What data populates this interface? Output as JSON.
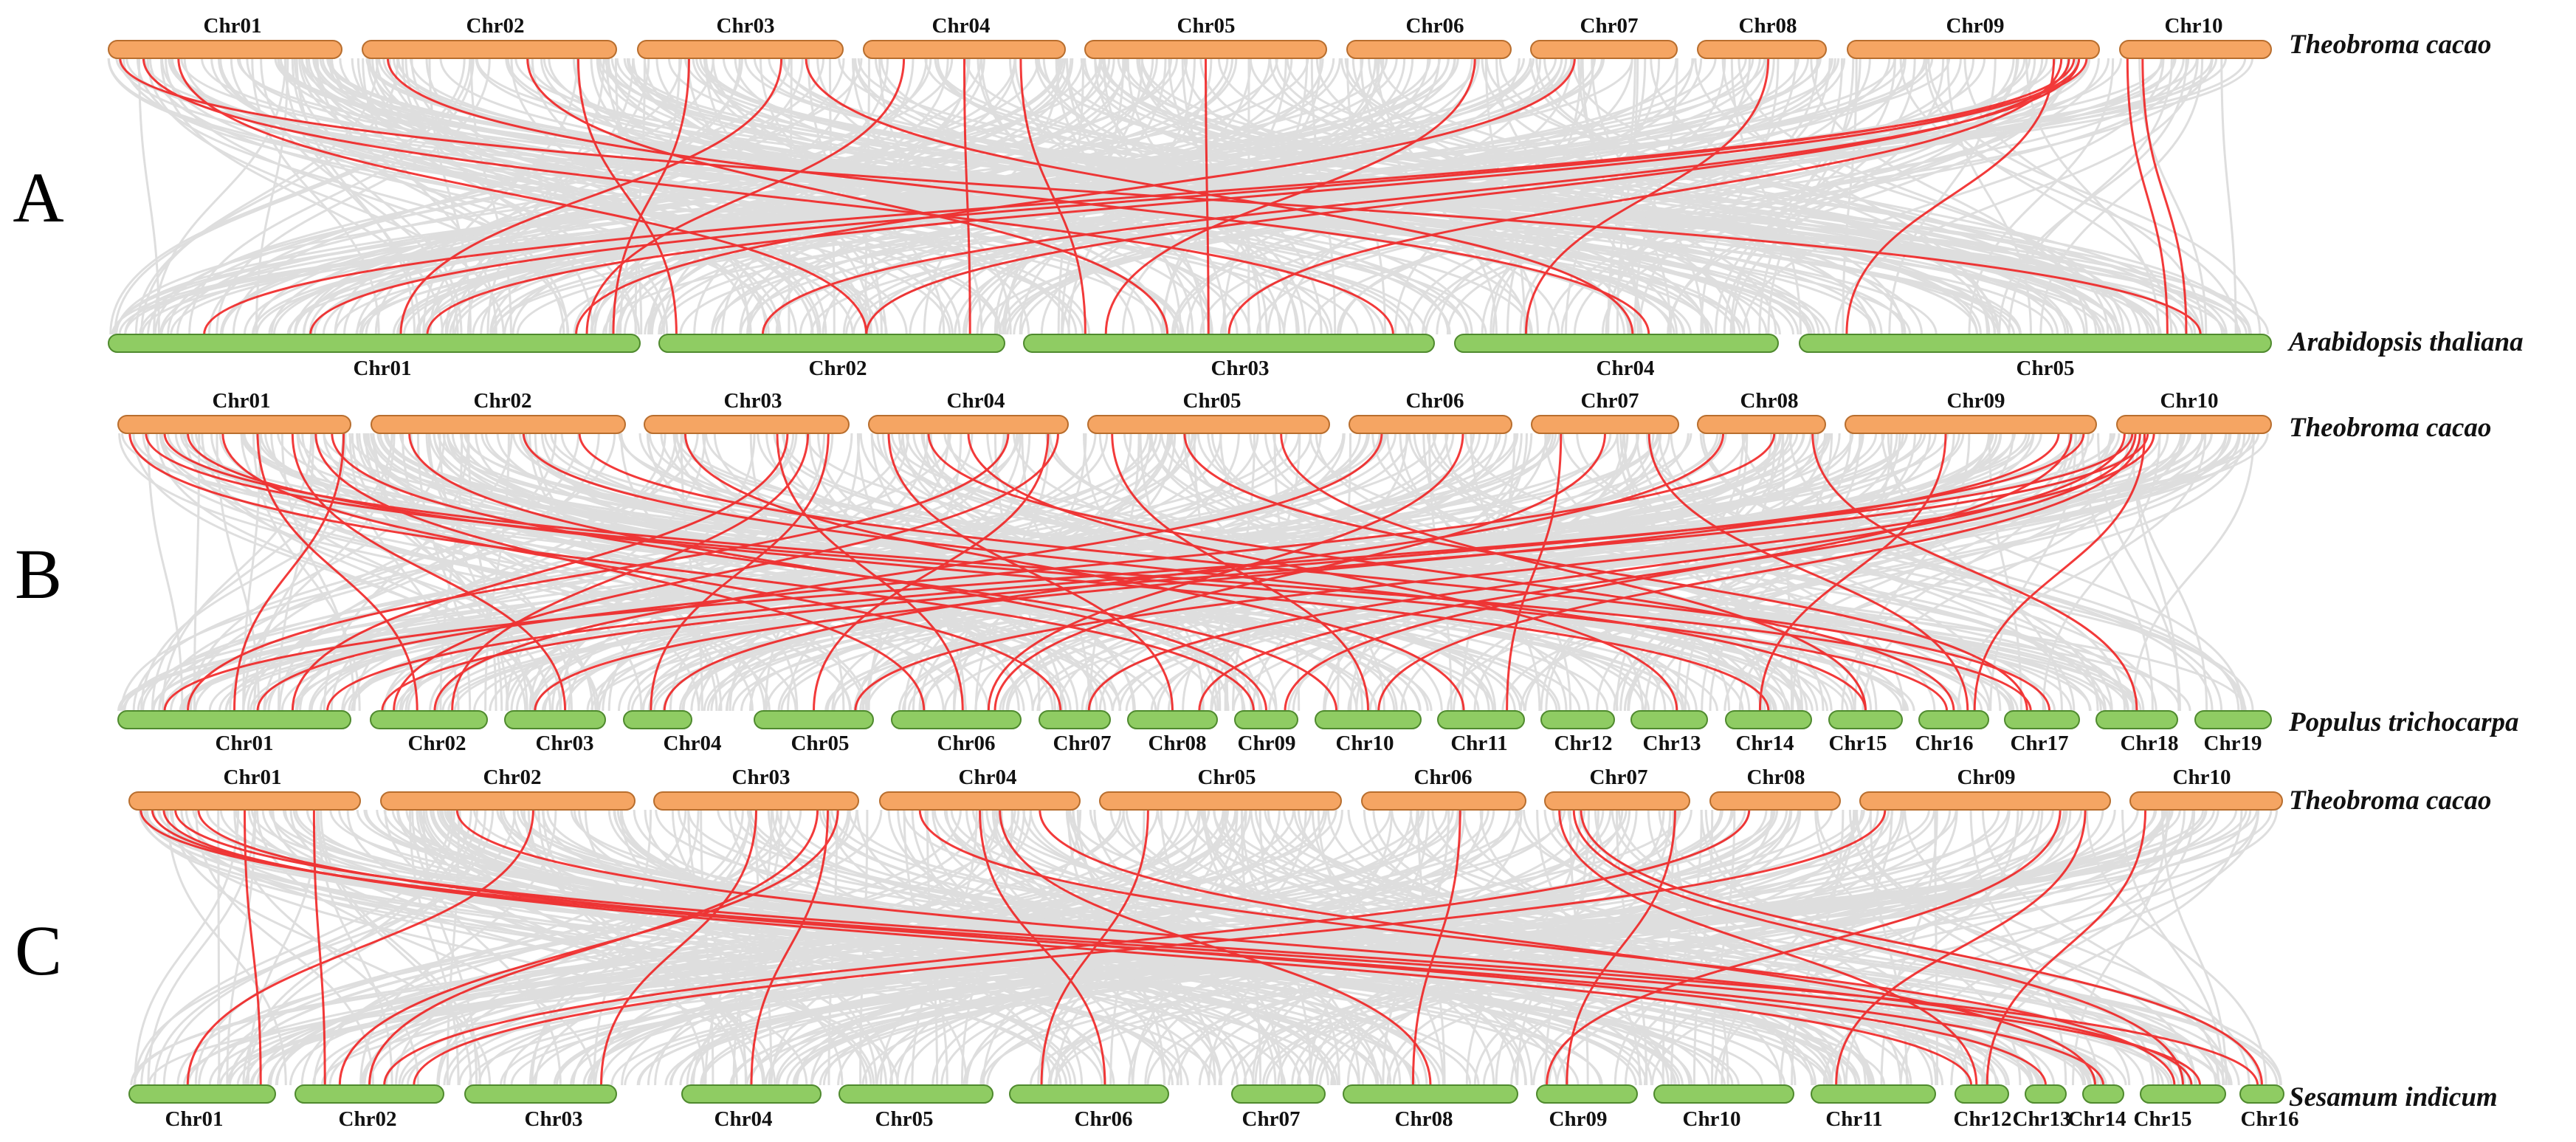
{
  "colors": {
    "reference_bar": "#F5A563",
    "reference_bar_stroke": "#B86E2E",
    "target_bar": "#8FCC63",
    "target_bar_stroke": "#4F8A2E",
    "background_link": "#D3D3D3",
    "highlight_link": "#F01818"
  },
  "panels": [
    {
      "letter": "A",
      "top_species": "Theobroma cacao",
      "bottom_species": "Arabidopsis thaliana",
      "top_chromosomes": [
        "Chr01",
        "Chr02",
        "Chr03",
        "Chr04",
        "Chr05",
        "Chr06",
        "Chr07",
        "Chr08",
        "Chr09",
        "Chr10"
      ],
      "bottom_chromosomes": [
        "Chr01",
        "Chr02",
        "Chr03",
        "Chr04",
        "Chr05"
      ],
      "highlight_links": [
        [
          0,
          0.05,
          4,
          0.85
        ],
        [
          0,
          0.15,
          2,
          0.9
        ],
        [
          0,
          0.3,
          1,
          0.6
        ],
        [
          1,
          0.1,
          3,
          0.6
        ],
        [
          1,
          0.65,
          2,
          0.35
        ],
        [
          1,
          0.85,
          1,
          0.05
        ],
        [
          2,
          0.25,
          0,
          0.95
        ],
        [
          2,
          0.7,
          0,
          0.55
        ],
        [
          2,
          0.82,
          3,
          0.55
        ],
        [
          3,
          0.5,
          1,
          0.9
        ],
        [
          3,
          0.78,
          2,
          0.15
        ],
        [
          3,
          0.2,
          0,
          0.9
        ],
        [
          4,
          0.5,
          2,
          0.45
        ],
        [
          5,
          0.78,
          2,
          0.2
        ],
        [
          6,
          0.3,
          0,
          0.88
        ],
        [
          7,
          0.55,
          3,
          0.22
        ],
        [
          8,
          0.95,
          0,
          0.18
        ],
        [
          8,
          0.9,
          0,
          0.38
        ],
        [
          8,
          0.88,
          1,
          0.6
        ],
        [
          8,
          0.85,
          2,
          0.5
        ],
        [
          8,
          0.82,
          4,
          0.1
        ],
        [
          8,
          0.92,
          0,
          0.6
        ],
        [
          8,
          0.92,
          1,
          0.3
        ],
        [
          9,
          0.05,
          4,
          0.78
        ],
        [
          9,
          0.15,
          4,
          0.82
        ]
      ]
    },
    {
      "letter": "B",
      "top_species": "Theobroma cacao",
      "bottom_species": "Populus trichocarpa",
      "top_chromosomes": [
        "Chr01",
        "Chr02",
        "Chr03",
        "Chr04",
        "Chr05",
        "Chr06",
        "Chr07",
        "Chr08",
        "Chr09",
        "Chr10"
      ],
      "bottom_chromosomes": [
        "Chr01",
        "Chr02",
        "Chr03",
        "Chr04",
        "Chr05",
        "Chr06",
        "Chr07",
        "Chr08",
        "Chr09",
        "Chr10",
        "Chr11",
        "Chr12",
        "Chr13",
        "Chr14",
        "Chr15",
        "Chr16",
        "Chr17",
        "Chr18",
        "Chr19"
      ],
      "highlight_links": [
        [
          0,
          0.05,
          8,
          0.3
        ],
        [
          0,
          0.12,
          15,
          0.4
        ],
        [
          0,
          0.2,
          16,
          0.35
        ],
        [
          0,
          0.3,
          13,
          0.5
        ],
        [
          0,
          0.45,
          6,
          0.3
        ],
        [
          0,
          0.6,
          1,
          0.4
        ],
        [
          0,
          0.75,
          2,
          0.6
        ],
        [
          0,
          0.85,
          5,
          0.25
        ],
        [
          0,
          0.92,
          9,
          0.2
        ],
        [
          0,
          0.97,
          0,
          0.5
        ],
        [
          1,
          0.15,
          8,
          0.5
        ],
        [
          1,
          0.6,
          14,
          0.5
        ],
        [
          1,
          0.82,
          16,
          0.6
        ],
        [
          2,
          0.2,
          10,
          0.3
        ],
        [
          2,
          0.7,
          0,
          0.75
        ],
        [
          2,
          0.8,
          1,
          0.7
        ],
        [
          2,
          0.9,
          3,
          0.4
        ],
        [
          2,
          0.65,
          5,
          0.55
        ],
        [
          3,
          0.1,
          7,
          0.5
        ],
        [
          3,
          0.3,
          15,
          0.5
        ],
        [
          3,
          0.5,
          12,
          0.6
        ],
        [
          3,
          0.7,
          0,
          0.3
        ],
        [
          3,
          0.9,
          4,
          0.5
        ],
        [
          3,
          0.95,
          1,
          0.2
        ],
        [
          4,
          0.1,
          9,
          0.5
        ],
        [
          4,
          0.4,
          16,
          0.3
        ],
        [
          4,
          0.8,
          14,
          0.5
        ],
        [
          5,
          0.2,
          1,
          0.55
        ],
        [
          5,
          0.7,
          5,
          0.75
        ],
        [
          6,
          0.2,
          10,
          0.8
        ],
        [
          6,
          0.5,
          5,
          0.8
        ],
        [
          6,
          0.8,
          15,
          0.7
        ],
        [
          7,
          0.2,
          3,
          0.6
        ],
        [
          7,
          0.6,
          0,
          0.6
        ],
        [
          7,
          0.9,
          17,
          0.5
        ],
        [
          8,
          0.4,
          13,
          0.4
        ],
        [
          8,
          0.85,
          2,
          0.3
        ],
        [
          8,
          0.9,
          8,
          0.8
        ],
        [
          8,
          0.95,
          0,
          0.9
        ],
        [
          9,
          0.05,
          6,
          0.7
        ],
        [
          9,
          0.1,
          0,
          0.2
        ],
        [
          9,
          0.12,
          7,
          0.8
        ],
        [
          9,
          0.15,
          9,
          0.6
        ],
        [
          9,
          0.18,
          15,
          0.8
        ],
        [
          9,
          0.2,
          1,
          0.1
        ],
        [
          9,
          0.24,
          4,
          0.85
        ]
      ]
    },
    {
      "letter": "C",
      "top_species": "Theobroma cacao",
      "bottom_species": "Sesamum indicum",
      "top_chromosomes": [
        "Chr01",
        "Chr02",
        "Chr03",
        "Chr04",
        "Chr05",
        "Chr06",
        "Chr07",
        "Chr08",
        "Chr09",
        "Chr10"
      ],
      "bottom_chromosomes": [
        "Chr01",
        "Chr02",
        "Chr03",
        "Chr04",
        "Chr05",
        "Chr06",
        "Chr07",
        "Chr08",
        "Chr09",
        "Chr10",
        "Chr11",
        "Chr12",
        "Chr13",
        "Chr14",
        "Chr15",
        "Chr16"
      ],
      "highlight_links": [
        [
          0,
          0.05,
          14,
          0.7
        ],
        [
          0,
          0.1,
          13,
          0.5
        ],
        [
          0,
          0.15,
          11,
          0.3
        ],
        [
          0,
          0.2,
          15,
          0.4
        ],
        [
          0,
          0.3,
          12,
          0.5
        ],
        [
          0,
          0.5,
          0,
          0.9
        ],
        [
          0,
          0.8,
          1,
          0.2
        ],
        [
          1,
          0.3,
          14,
          0.6
        ],
        [
          1,
          0.6,
          0,
          0.4
        ],
        [
          2,
          0.5,
          2,
          0.9
        ],
        [
          2,
          0.8,
          1,
          0.5
        ],
        [
          2,
          0.85,
          3,
          0.5
        ],
        [
          2,
          0.9,
          1,
          0.3
        ],
        [
          3,
          0.2,
          14,
          0.4
        ],
        [
          3,
          0.5,
          5,
          0.6
        ],
        [
          3,
          0.6,
          7,
          0.5
        ],
        [
          3,
          0.8,
          13,
          0.3
        ],
        [
          4,
          0.2,
          5,
          0.2
        ],
        [
          5,
          0.6,
          7,
          0.4
        ],
        [
          6,
          0.1,
          11,
          0.4
        ],
        [
          6,
          0.2,
          14,
          0.5
        ],
        [
          6,
          0.25,
          15,
          0.5
        ],
        [
          6,
          0.9,
          8,
          0.3
        ],
        [
          7,
          0.3,
          1,
          0.6
        ],
        [
          8,
          0.1,
          1,
          0.8
        ],
        [
          8,
          0.8,
          8,
          0.1
        ],
        [
          8,
          0.9,
          10,
          0.2
        ],
        [
          9,
          0.1,
          11,
          0.6
        ]
      ]
    }
  ]
}
